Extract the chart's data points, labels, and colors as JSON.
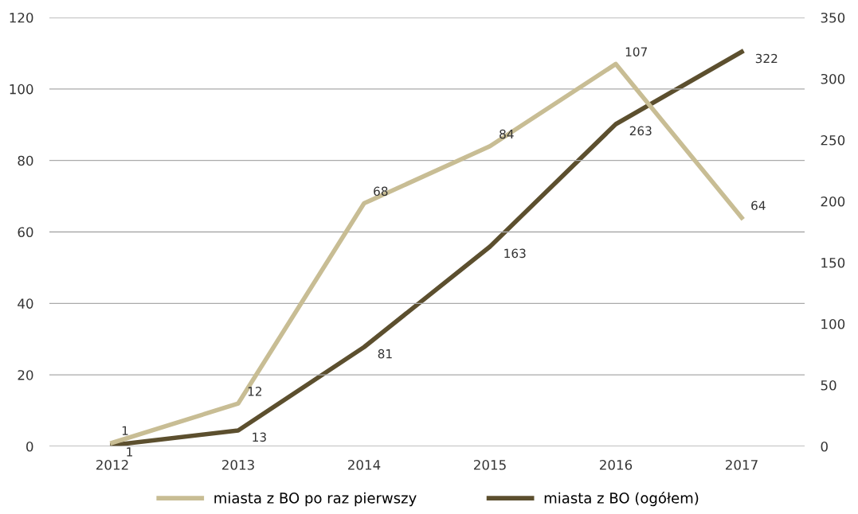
{
  "chart_data": {
    "type": "line",
    "categories": [
      "2012",
      "2013",
      "2014",
      "2015",
      "2016",
      "2017"
    ],
    "series": [
      {
        "name": "miasta z BO po raz pierwszy",
        "color": "#c8bd94",
        "values": [
          1,
          12,
          68,
          84,
          107,
          64
        ]
      },
      {
        "name": "miasta z BO (ogółem)",
        "color": "#5c4f2e",
        "values": [
          1,
          13,
          81,
          163,
          263,
          322
        ],
        "axis": "y2"
      }
    ],
    "ylim": [
      0,
      120
    ],
    "yticks": [
      0,
      20,
      40,
      60,
      80,
      100,
      120
    ],
    "y2lim": [
      0,
      350
    ],
    "y2ticks": [
      0,
      50,
      100,
      150,
      200,
      250,
      300,
      350
    ],
    "grid": "y",
    "legend": "bottom",
    "data_labels": true,
    "marker": "none",
    "line_style": "solid"
  }
}
